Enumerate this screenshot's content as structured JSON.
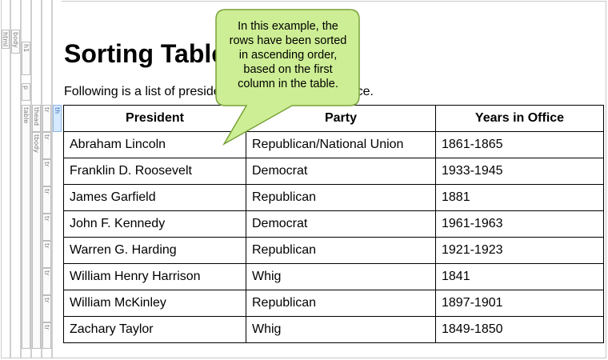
{
  "structure_bar": {
    "tags": [
      "html",
      "body",
      "h1",
      "p",
      "table",
      "thead",
      "tbody",
      "tr",
      "tr",
      "tr",
      "tr",
      "tr",
      "tr",
      "tr",
      "tr",
      "tr",
      "th"
    ]
  },
  "page": {
    "title": "Sorting Table",
    "intro_visible_start": "Following is a list of preside",
    "intro_visible_end": "ce."
  },
  "table": {
    "headers": [
      "President",
      "Party",
      "Years in Office"
    ],
    "rows": [
      [
        "Abraham Lincoln",
        "Republican/National Union",
        "1861-1865"
      ],
      [
        "Franklin D. Roosevelt",
        "Democrat",
        "1933-1945"
      ],
      [
        "James Garfield",
        "Republican",
        "1881"
      ],
      [
        "John F. Kennedy",
        "Democrat",
        "1961-1963"
      ],
      [
        "Warren G. Harding",
        "Republican",
        "1921-1923"
      ],
      [
        "William Henry Harrison",
        "Whig",
        "1841"
      ],
      [
        "William McKinley",
        "Republican",
        "1897-1901"
      ],
      [
        "Zachary Taylor",
        "Whig",
        "1849-1850"
      ]
    ]
  },
  "callout": {
    "lines": [
      "In this example, the",
      "rows have been sorted",
      "in ascending order,",
      "based on the first",
      "column in the table."
    ],
    "fill_color": "#cdee94",
    "border_color": "#7aa23a"
  }
}
